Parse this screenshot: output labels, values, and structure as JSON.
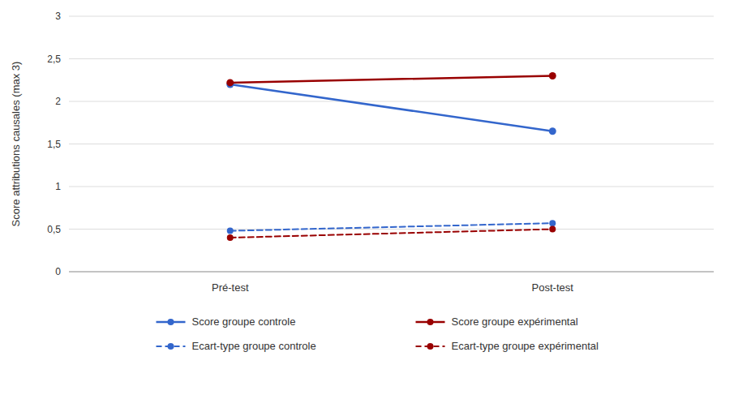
{
  "chart_data": {
    "type": "line",
    "categories": [
      "Pré-test",
      "Post-test"
    ],
    "series": [
      {
        "name": "Score groupe controle",
        "color": "#3366CC",
        "values": [
          2.2,
          1.65
        ],
        "marker": "circle",
        "line_style": "solid"
      },
      {
        "name": "Score groupe expérimental",
        "color": "#990000",
        "values": [
          2.22,
          2.3
        ],
        "marker": "circle",
        "line_style": "solid"
      },
      {
        "name": "Ecart-type groupe controle",
        "color": "#3366CC",
        "values": [
          0.48,
          0.57
        ],
        "marker": "circle",
        "line_style": "dashed"
      },
      {
        "name": "Ecart-type groupe expérimental",
        "color": "#990000",
        "values": [
          0.4,
          0.5
        ],
        "marker": "circle",
        "line_style": "dashed"
      }
    ],
    "y_label": "Score attributions causales (max 3)",
    "ylim": [
      0,
      3
    ],
    "yticks": [
      0,
      {
        "value": 0.5,
        "label": "0,5"
      },
      1,
      {
        "value": 1.5,
        "label": "1,5"
      },
      2,
      {
        "value": 2.5,
        "label": "2,5"
      },
      3
    ],
    "grid": true,
    "legend": "bottom"
  }
}
